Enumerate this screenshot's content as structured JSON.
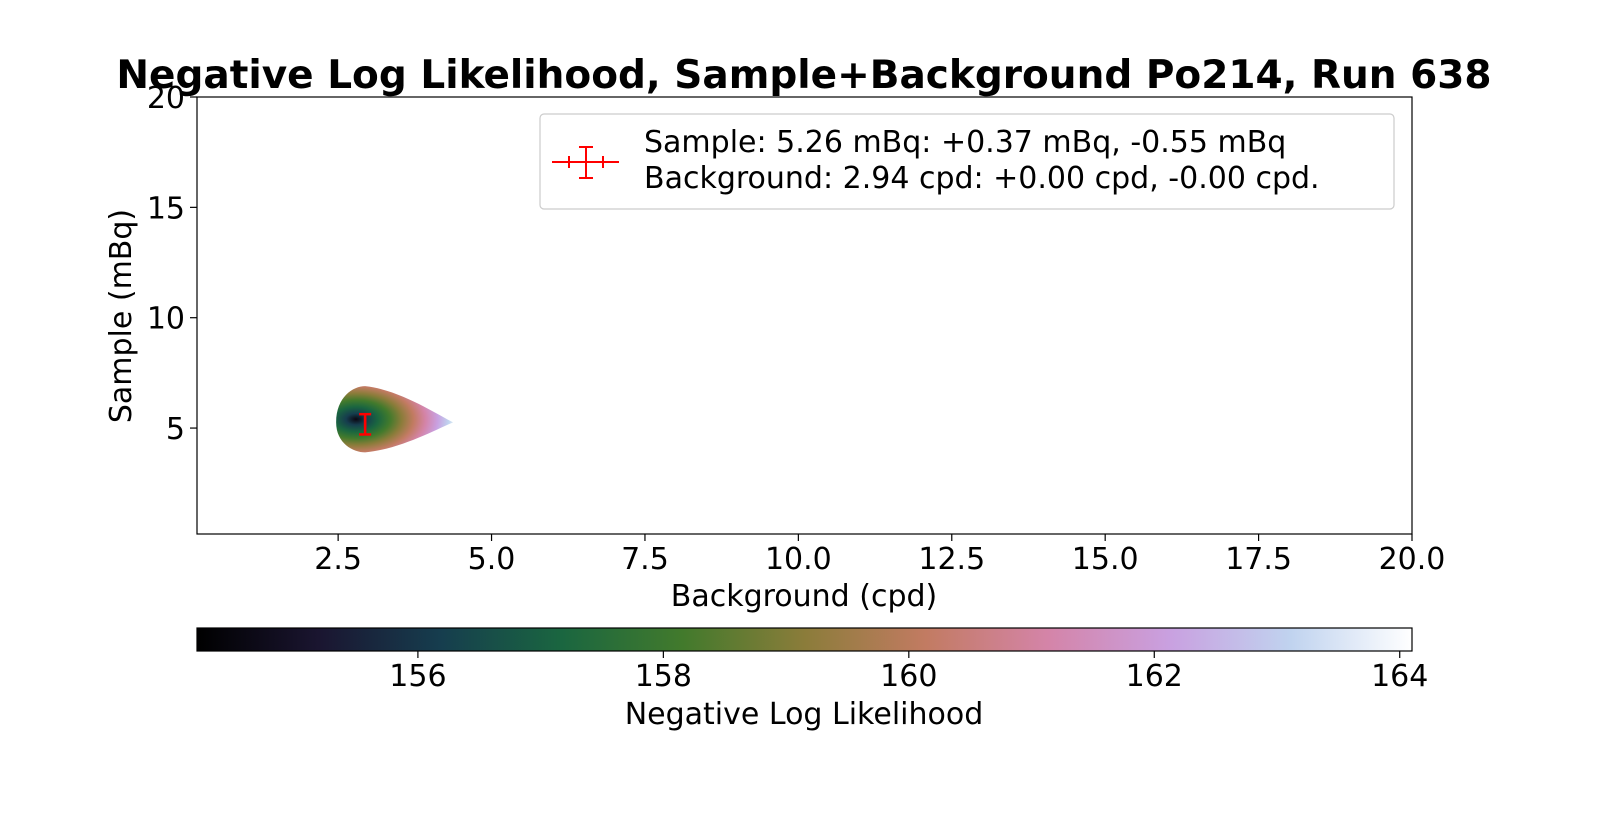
{
  "chart_data": {
    "type": "heatmap",
    "title": "Negative Log Likelihood, Sample+Background Po214, Run 638",
    "xlabel": "Background (cpd)",
    "ylabel": "Sample (mBq)",
    "xlim": [
      0.2,
      20.0
    ],
    "ylim": [
      0.2,
      20.0
    ],
    "x_ticks": [
      2.5,
      5.0,
      7.5,
      10.0,
      12.5,
      15.0,
      17.5,
      20.0
    ],
    "x_tick_labels": [
      "2.5",
      "5.0",
      "7.5",
      "10.0",
      "12.5",
      "15.0",
      "17.5",
      "20.0"
    ],
    "y_ticks": [
      5,
      10,
      15,
      20
    ],
    "y_tick_labels": [
      "5",
      "10",
      "15",
      "20"
    ],
    "colormap": "cubehelix",
    "colorbar": {
      "label": "Negative Log Likelihood",
      "range": [
        154.2,
        164.1
      ],
      "ticks": [
        156,
        158,
        160,
        162,
        164
      ],
      "tick_labels": [
        "156",
        "158",
        "160",
        "162",
        "164"
      ]
    },
    "likelihood_region": {
      "minimum": {
        "x": 2.94,
        "y": 5.26,
        "value": 154.2
      },
      "cutoff_value": 164.1
    },
    "best_fit": {
      "x": 2.94,
      "y": 5.26,
      "x_err_plus": 0.0,
      "x_err_minus": 0.0,
      "y_err_plus": 0.37,
      "y_err_minus": 0.55,
      "color": "#ff0000"
    },
    "legend": {
      "position": "upper-right",
      "line1": "Sample: 5.26 mBq: +0.37 mBq, -0.55 mBq",
      "line2": "Background: 2.94 cpd: +0.00 cpd, -0.00 cpd."
    },
    "grid": false
  }
}
